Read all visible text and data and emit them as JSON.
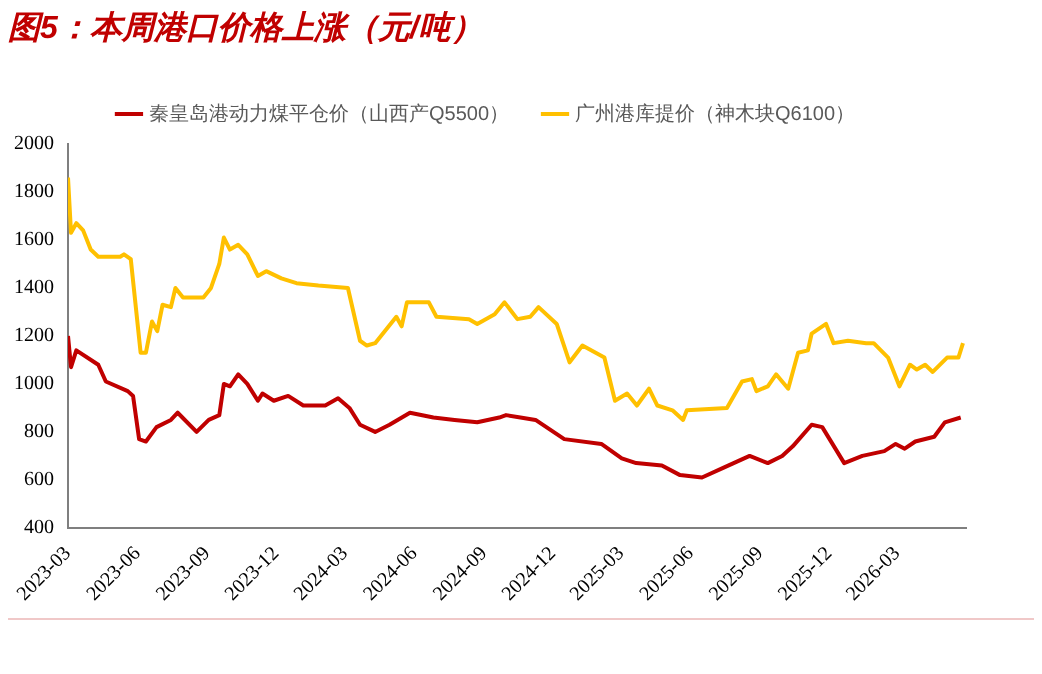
{
  "chart_data": {
    "type": "line",
    "title": "图5：本周港口价格上涨（元/吨）",
    "legend": "top",
    "grid": false,
    "marker": "none",
    "line_style": "solid",
    "xlim": [
      "2023-03-01",
      "2026-05-31"
    ],
    "xticks": [
      "2023-03",
      "2023-06",
      "2023-09",
      "2023-12",
      "2024-03",
      "2024-06",
      "2024-09",
      "2024-12",
      "2025-03",
      "2025-06",
      "2025-09",
      "2025-12",
      "2026-03"
    ],
    "ylim": [
      400,
      2000
    ],
    "yticks": [
      400,
      600,
      800,
      1000,
      1200,
      1400,
      1600,
      1800,
      2000
    ],
    "series": [
      {
        "name": "秦皇岛港动力煤平仓价（山西产Q5500）",
        "color": "#c00000",
        "x": [
          "2023-03-01",
          "2023-03-05",
          "2023-03-12",
          "2023-04-10",
          "2023-04-20",
          "2023-05-19",
          "2023-05-26",
          "2023-06-03",
          "2023-06-12",
          "2023-06-26",
          "2023-07-15",
          "2023-07-24",
          "2023-08-18",
          "2023-09-03",
          "2023-09-17",
          "2023-09-23",
          "2023-10-01",
          "2023-10-12",
          "2023-10-24",
          "2023-11-07",
          "2023-11-13",
          "2023-11-28",
          "2023-12-17",
          "2024-01-06",
          "2024-02-04",
          "2024-02-21",
          "2024-03-07",
          "2024-03-21",
          "2024-04-10",
          "2024-04-29",
          "2024-05-26",
          "2024-06-26",
          "2024-07-24",
          "2024-08-23",
          "2024-09-21",
          "2024-09-30",
          "2024-10-19",
          "2024-11-08",
          "2024-12-16",
          "2025-02-03",
          "2025-03-02",
          "2025-03-21",
          "2025-04-24",
          "2025-05-18",
          "2025-06-16",
          "2025-07-14",
          "2025-08-18",
          "2025-09-11",
          "2025-09-30",
          "2025-10-14",
          "2025-11-08",
          "2025-11-22",
          "2025-12-21",
          "2026-01-14",
          "2026-02-12",
          "2026-02-27",
          "2026-03-11",
          "2026-03-25",
          "2026-04-19",
          "2026-05-03",
          "2026-05-24"
        ],
        "values": [
          1200,
          1070,
          1140,
          1080,
          1010,
          970,
          950,
          770,
          760,
          820,
          850,
          880,
          800,
          850,
          870,
          1000,
          990,
          1040,
          1000,
          930,
          960,
          930,
          950,
          910,
          910,
          940,
          900,
          830,
          800,
          830,
          880,
          860,
          850,
          840,
          860,
          870,
          860,
          850,
          770,
          750,
          690,
          670,
          660,
          620,
          610,
          650,
          700,
          670,
          700,
          740,
          830,
          820,
          670,
          700,
          720,
          750,
          730,
          760,
          780,
          840,
          860
        ]
      },
      {
        "name": "广州港库提价（神木块Q6100）",
        "color": "#ffc000",
        "x": [
          "2023-03-01",
          "2023-03-05",
          "2023-03-12",
          "2023-03-21",
          "2023-03-31",
          "2023-04-10",
          "2023-05-09",
          "2023-05-14",
          "2023-05-23",
          "2023-06-05",
          "2023-06-12",
          "2023-06-20",
          "2023-06-27",
          "2023-07-04",
          "2023-07-15",
          "2023-07-21",
          "2023-07-31",
          "2023-08-27",
          "2023-09-06",
          "2023-09-17",
          "2023-09-23",
          "2023-10-01",
          "2023-10-12",
          "2023-10-24",
          "2023-11-07",
          "2023-11-18",
          "2023-12-08",
          "2023-12-28",
          "2024-01-26",
          "2024-03-05",
          "2024-03-21",
          "2024-03-30",
          "2024-04-10",
          "2024-05-08",
          "2024-05-15",
          "2024-05-22",
          "2024-06-20",
          "2024-06-30",
          "2024-08-12",
          "2024-08-23",
          "2024-09-15",
          "2024-09-28",
          "2024-10-15",
          "2024-11-01",
          "2024-11-12",
          "2024-12-06",
          "2024-12-23",
          "2025-01-09",
          "2025-02-07",
          "2025-02-21",
          "2025-03-09",
          "2025-03-22",
          "2025-04-07",
          "2025-04-18",
          "2025-05-08",
          "2025-05-22",
          "2025-05-27",
          "2025-07-19",
          "2025-08-08",
          "2025-08-21",
          "2025-08-27",
          "2025-09-11",
          "2025-09-22",
          "2025-10-08",
          "2025-10-21",
          "2025-11-03",
          "2025-11-08",
          "2025-11-27",
          "2025-12-07",
          "2025-12-26",
          "2026-01-19",
          "2026-01-29",
          "2026-02-17",
          "2026-03-04",
          "2026-03-18",
          "2026-03-27",
          "2026-04-07",
          "2026-04-17",
          "2026-05-06",
          "2026-05-21",
          "2026-05-27"
        ],
        "values": [
          1860,
          1630,
          1670,
          1640,
          1560,
          1530,
          1530,
          1540,
          1520,
          1130,
          1130,
          1260,
          1220,
          1330,
          1320,
          1400,
          1360,
          1360,
          1400,
          1500,
          1610,
          1560,
          1580,
          1540,
          1450,
          1470,
          1440,
          1420,
          1410,
          1400,
          1180,
          1160,
          1170,
          1280,
          1240,
          1340,
          1340,
          1280,
          1270,
          1250,
          1290,
          1340,
          1270,
          1280,
          1320,
          1250,
          1090,
          1160,
          1110,
          930,
          960,
          910,
          980,
          910,
          890,
          850,
          890,
          900,
          1010,
          1020,
          970,
          990,
          1040,
          980,
          1130,
          1140,
          1210,
          1250,
          1170,
          1180,
          1170,
          1170,
          1110,
          990,
          1080,
          1060,
          1080,
          1050,
          1110,
          1110,
          1170
        ]
      }
    ]
  }
}
